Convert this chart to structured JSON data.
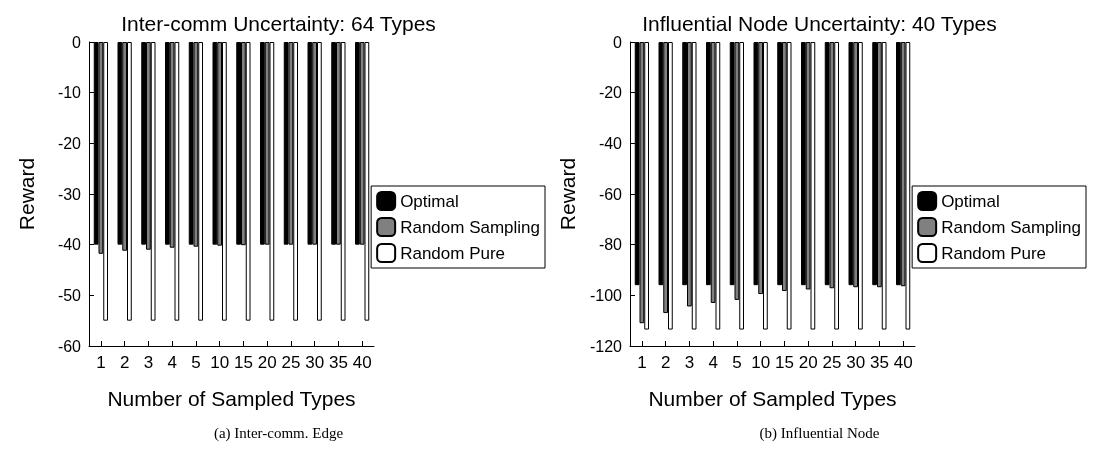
{
  "chart_data": [
    {
      "type": "bar",
      "title": "Inter-comm Uncertainty: 64 Types",
      "xlabel": "Number of Sampled Types",
      "ylabel": "Reward",
      "annotations": [
        "(a) Inter-comm. Edge"
      ],
      "categories": [
        "1",
        "2",
        "3",
        "4",
        "5",
        "10",
        "15",
        "20",
        "25",
        "30",
        "35",
        "40"
      ],
      "series": [
        {
          "name": "Optimal",
          "color": "#000000",
          "values": [
            -40,
            -40,
            -40,
            -40,
            -40,
            -40,
            -40,
            -40,
            -40,
            -40,
            -40,
            -40
          ]
        },
        {
          "name": "Random Sampling",
          "color": "#808080",
          "values": [
            -41.8,
            -41.2,
            -41,
            -40.6,
            -40.4,
            -40.2,
            -40.1,
            -40,
            -40,
            -40,
            -40,
            -40
          ]
        },
        {
          "name": "Random Pure",
          "color": "#ffffff",
          "values": [
            -55,
            -55,
            -55,
            -55,
            -55,
            -55,
            -55,
            -55,
            -55,
            -55,
            -55,
            -55
          ]
        }
      ],
      "ylim": [
        -60,
        0
      ],
      "yticks": [
        -60,
        -50,
        -40,
        -30,
        -20,
        -10,
        0
      ],
      "legend": "right",
      "grid": false
    },
    {
      "type": "bar",
      "title": "Influential Node Uncertainty: 40 Types",
      "xlabel": "Number of Sampled Types",
      "ylabel": "Reward",
      "annotations": [
        "(b) Influential Node"
      ],
      "categories": [
        "1",
        "2",
        "3",
        "4",
        "5",
        "10",
        "15",
        "20",
        "25",
        "30",
        "35",
        "40"
      ],
      "series": [
        {
          "name": "Optimal",
          "color": "#000000",
          "values": [
            -96,
            -96,
            -96,
            -96,
            -96,
            -96,
            -96,
            -96,
            -96,
            -96,
            -96,
            -96
          ]
        },
        {
          "name": "Random Sampling",
          "color": "#808080",
          "values": [
            -111,
            -107,
            -104.4,
            -103,
            -101.8,
            -99.5,
            -98.3,
            -97.7,
            -97.2,
            -96.8,
            -96.8,
            -96.4
          ]
        },
        {
          "name": "Random Pure",
          "color": "#ffffff",
          "values": [
            -113.5,
            -113.5,
            -113.5,
            -113.5,
            -113.5,
            -113.5,
            -113.5,
            -113.5,
            -113.5,
            -113.5,
            -113.5,
            -113.5
          ]
        }
      ],
      "ylim": [
        -120,
        0
      ],
      "yticks": [
        -120,
        -100,
        -80,
        -60,
        -40,
        -20,
        0
      ],
      "legend": "right",
      "grid": false
    }
  ]
}
